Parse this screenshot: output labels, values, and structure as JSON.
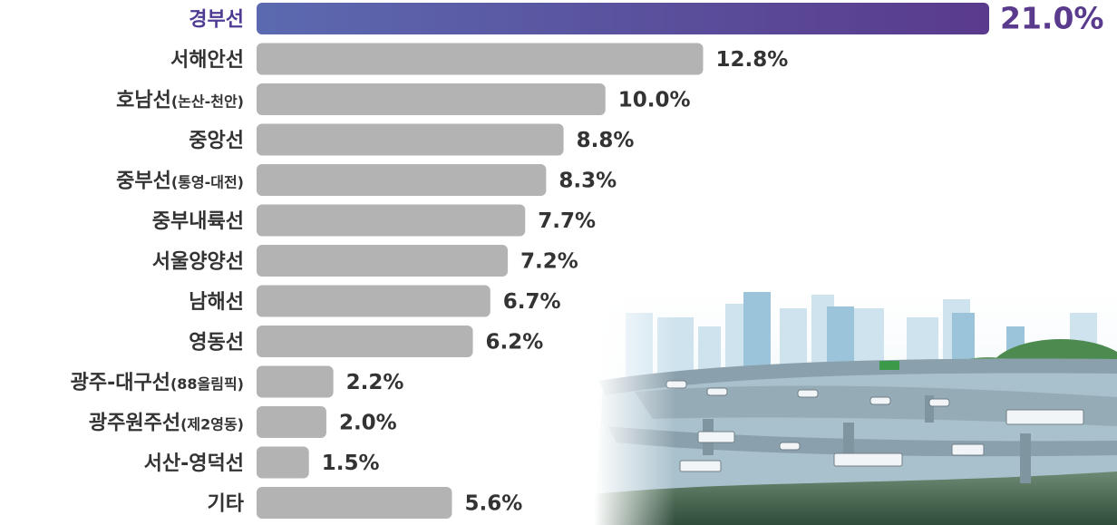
{
  "chart_data": {
    "type": "bar",
    "orientation": "horizontal",
    "categories": [
      {
        "main": "경부선",
        "sub": ""
      },
      {
        "main": "서해안선",
        "sub": ""
      },
      {
        "main": "호남선",
        "sub": "(논산-천안)"
      },
      {
        "main": "중앙선",
        "sub": ""
      },
      {
        "main": "중부선",
        "sub": "(통영-대전)"
      },
      {
        "main": "중부내륙선",
        "sub": ""
      },
      {
        "main": "서울양양선",
        "sub": ""
      },
      {
        "main": "남해선",
        "sub": ""
      },
      {
        "main": "영동선",
        "sub": ""
      },
      {
        "main": "광주-대구선",
        "sub": "(88올림픽)"
      },
      {
        "main": "광주원주선",
        "sub": "(제2영동)"
      },
      {
        "main": "서산-영덕선",
        "sub": ""
      },
      {
        "main": "기타",
        "sub": ""
      }
    ],
    "values": [
      21.0,
      12.8,
      10.0,
      8.8,
      8.3,
      7.7,
      7.2,
      6.7,
      6.2,
      2.2,
      2.0,
      1.5,
      5.6
    ],
    "value_labels": [
      "21.0%",
      "12.8%",
      "10.0%",
      "8.8%",
      "8.3%",
      "7.7%",
      "7.2%",
      "6.7%",
      "6.2%",
      "2.2%",
      "2.0%",
      "1.5%",
      "5.6%"
    ],
    "highlight_index": 0,
    "xlim": [
      0,
      21.0
    ],
    "grid": false,
    "colors": {
      "bar": "#b3b3b3",
      "highlight_start": "#5b6ab0",
      "highlight_end": "#5a3a8c",
      "highlight_label": "#5a3a8c",
      "text": "#333333"
    }
  },
  "illustration": "highway-interchange-city-skyline"
}
